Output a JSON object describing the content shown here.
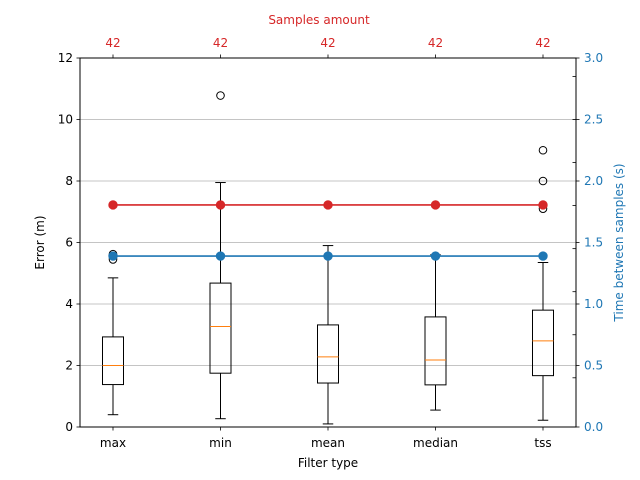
{
  "colors": {
    "red": "#d62728",
    "blue": "#1f77b4",
    "median": "#ff7f0e",
    "axis": "#000000",
    "grid": "#b0b0b0"
  },
  "chart_data": {
    "type": "box",
    "xlabel": "Filter type",
    "ylabel": "Error (m)",
    "ylim": [
      0,
      12
    ],
    "y_ticks": [
      "0",
      "2",
      "4",
      "6",
      "8",
      "10",
      "12"
    ],
    "grid": "horizontal",
    "categories": [
      "max",
      "min",
      "mean",
      "median",
      "tss"
    ],
    "boxes": [
      {
        "whisker_low": 0.4,
        "q1": 1.38,
        "median": 2.0,
        "q3": 2.93,
        "whisker_high": 4.85,
        "outliers": [
          5.45,
          5.62
        ]
      },
      {
        "whisker_low": 0.27,
        "q1": 1.75,
        "median": 3.27,
        "q3": 4.68,
        "whisker_high": 7.95,
        "outliers": [
          10.78
        ]
      },
      {
        "whisker_low": 0.1,
        "q1": 1.43,
        "median": 2.28,
        "q3": 3.32,
        "whisker_high": 5.9,
        "outliers": []
      },
      {
        "whisker_low": 0.55,
        "q1": 1.37,
        "median": 2.18,
        "q3": 3.58,
        "whisker_high": 5.6,
        "outliers": []
      },
      {
        "whisker_low": 0.22,
        "q1": 1.67,
        "median": 2.8,
        "q3": 3.8,
        "whisker_high": 5.35,
        "outliers": [
          7.1,
          8.0,
          9.0
        ]
      }
    ],
    "secondary_y": {
      "label": "Time between samples (s)",
      "ylim": [
        0,
        3
      ],
      "ticks": [
        "0.0",
        "0.5",
        "1.0",
        "1.5",
        "2.0",
        "2.5",
        "3.0"
      ],
      "minor_ticks": [
        0.4,
        0.75,
        1.1,
        1.45,
        1.8,
        2.15,
        2.5,
        2.85
      ]
    },
    "top_axis": {
      "label": "Samples amount",
      "tick_labels": [
        "42",
        "42",
        "42",
        "42",
        "42"
      ]
    },
    "series": [
      {
        "axis": "primary",
        "color": "red",
        "values": [
          7.22,
          7.22,
          7.22,
          7.22,
          7.22
        ]
      },
      {
        "axis": "secondary",
        "color": "blue",
        "values": [
          1.39,
          1.39,
          1.39,
          1.39,
          1.39
        ]
      }
    ]
  }
}
